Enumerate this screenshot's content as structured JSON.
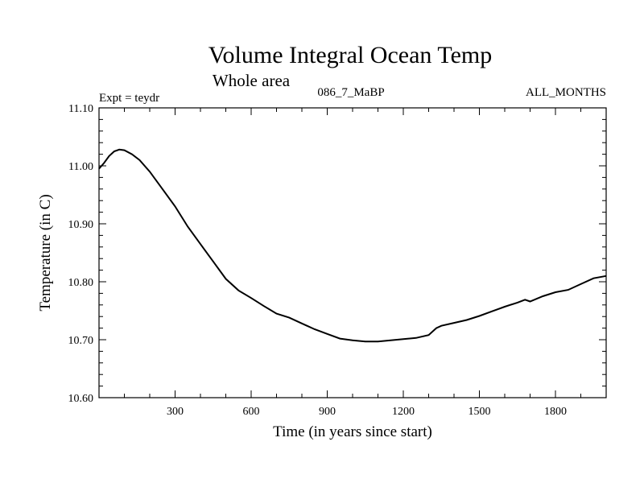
{
  "chart_data": {
    "type": "line",
    "title": "Volume Integral Ocean Temp",
    "subtitle": "Whole area",
    "annotations": {
      "experiment": "Expt = teydr",
      "run": "086_7_MaBP",
      "months": "ALL_MONTHS"
    },
    "xlabel": "Time (in years since start)",
    "ylabel": "Temperature (in C)",
    "xlim": [
      0,
      2000
    ],
    "ylim": [
      10.6,
      11.1
    ],
    "xticks": [
      300,
      600,
      900,
      1200,
      1500,
      1800
    ],
    "xtick_labels": [
      "300",
      "600",
      "900",
      "1200",
      "1500",
      "1800"
    ],
    "yticks": [
      10.6,
      10.7,
      10.8,
      10.9,
      11.0,
      11.1
    ],
    "ytick_labels": [
      "10.60",
      "10.70",
      "10.80",
      "10.90",
      "11.00",
      "11.10"
    ],
    "grid": false,
    "series": [
      {
        "name": "teydr",
        "x": [
          0,
          20,
          40,
          60,
          80,
          100,
          130,
          160,
          200,
          250,
          300,
          350,
          400,
          450,
          500,
          550,
          600,
          650,
          700,
          750,
          800,
          850,
          900,
          950,
          1000,
          1050,
          1100,
          1150,
          1200,
          1250,
          1300,
          1330,
          1350,
          1400,
          1450,
          1500,
          1550,
          1600,
          1650,
          1680,
          1700,
          1750,
          1800,
          1850,
          1900,
          1950,
          2000
        ],
        "values": [
          10.995,
          11.005,
          11.017,
          11.025,
          11.028,
          11.027,
          11.02,
          11.01,
          10.99,
          10.96,
          10.93,
          10.895,
          10.865,
          10.835,
          10.805,
          10.785,
          10.772,
          10.758,
          10.745,
          10.738,
          10.728,
          10.718,
          10.71,
          10.702,
          10.699,
          10.697,
          10.697,
          10.699,
          10.701,
          10.703,
          10.708,
          10.72,
          10.724,
          10.729,
          10.734,
          10.741,
          10.749,
          10.757,
          10.764,
          10.769,
          10.766,
          10.775,
          10.782,
          10.786,
          10.796,
          10.806,
          10.81
        ]
      }
    ]
  }
}
